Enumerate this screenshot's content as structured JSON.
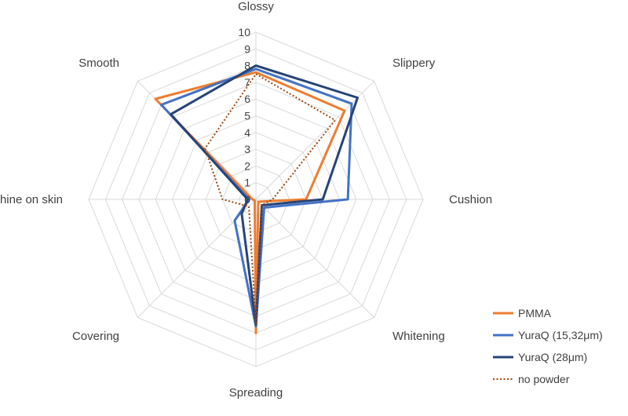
{
  "chart_data": {
    "type": "radar",
    "axes": [
      "Glossy",
      "Slippery",
      "Cushion",
      "Whitening",
      "Spreading",
      "Covering",
      "Shine on skin",
      "Smooth"
    ],
    "range": [
      0,
      10
    ],
    "ticks": [
      "0",
      "1",
      "2",
      "3",
      "4",
      "5",
      "6",
      "7",
      "8",
      "9",
      "10"
    ],
    "grid": true,
    "legend_position": "bottom-right",
    "series": [
      {
        "name": "PMMA",
        "values": [
          7.6,
          7.5,
          3.0,
          0.2,
          8.0,
          0.1,
          0.2,
          8.5
        ],
        "color": "#ED7D31",
        "dash": "solid"
      },
      {
        "name": "YuraQ (15,32μm)",
        "values": [
          7.8,
          8.1,
          5.5,
          0.7,
          7.6,
          1.8,
          0.4,
          8.0
        ],
        "color": "#4472C4",
        "dash": "solid"
      },
      {
        "name": "YuraQ (28μm)",
        "values": [
          8.0,
          8.6,
          4.0,
          0.5,
          7.5,
          1.2,
          0.5,
          7.2
        ],
        "color": "#264478",
        "dash": "solid"
      },
      {
        "name": "no powder",
        "values": [
          7.5,
          6.7,
          1.0,
          0.5,
          7.5,
          0.6,
          2.0,
          4.3
        ],
        "color": "#9E480E",
        "dash": "dotted"
      }
    ]
  }
}
